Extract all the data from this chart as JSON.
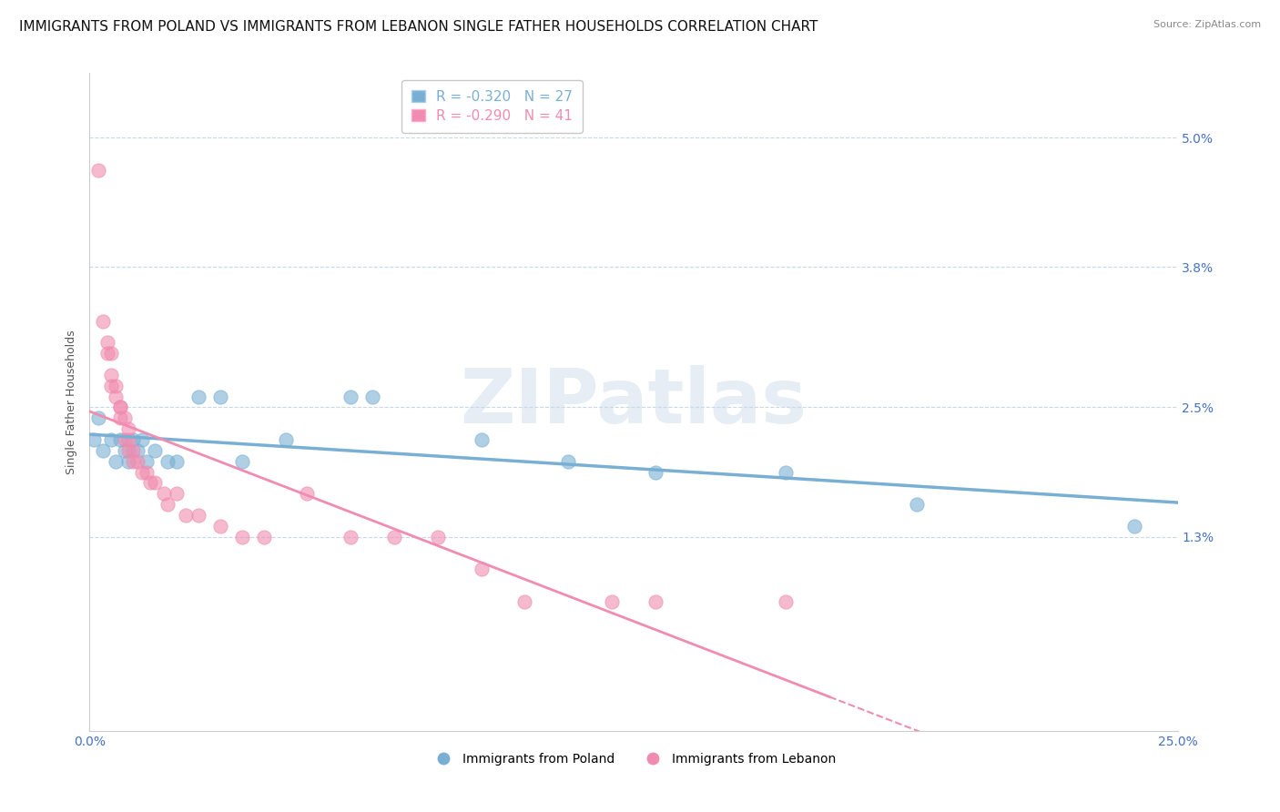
{
  "title": "IMMIGRANTS FROM POLAND VS IMMIGRANTS FROM LEBANON SINGLE FATHER HOUSEHOLDS CORRELATION CHART",
  "source": "Source: ZipAtlas.com",
  "ylabel": "Single Father Households",
  "x_min": 0.0,
  "x_max": 0.25,
  "y_min": -0.005,
  "y_max": 0.056,
  "y_ticks": [
    0.05,
    0.038,
    0.025,
    0.013
  ],
  "y_tick_labels": [
    "5.0%",
    "3.8%",
    "2.5%",
    "1.3%"
  ],
  "x_ticks": [
    0.0,
    0.25
  ],
  "x_tick_labels": [
    "0.0%",
    "25.0%"
  ],
  "legend_label1": "Immigrants from Poland",
  "legend_label2": "Immigrants from Lebanon",
  "color_poland": "#7aafd4",
  "color_lebanon": "#f08caf",
  "poland_R": -0.32,
  "poland_N": 27,
  "lebanon_R": -0.29,
  "lebanon_N": 41,
  "poland_points": [
    [
      0.001,
      0.022
    ],
    [
      0.002,
      0.024
    ],
    [
      0.003,
      0.021
    ],
    [
      0.005,
      0.022
    ],
    [
      0.006,
      0.02
    ],
    [
      0.007,
      0.022
    ],
    [
      0.008,
      0.021
    ],
    [
      0.009,
      0.02
    ],
    [
      0.01,
      0.022
    ],
    [
      0.011,
      0.021
    ],
    [
      0.012,
      0.022
    ],
    [
      0.013,
      0.02
    ],
    [
      0.015,
      0.021
    ],
    [
      0.018,
      0.02
    ],
    [
      0.02,
      0.02
    ],
    [
      0.025,
      0.026
    ],
    [
      0.03,
      0.026
    ],
    [
      0.035,
      0.02
    ],
    [
      0.045,
      0.022
    ],
    [
      0.06,
      0.026
    ],
    [
      0.065,
      0.026
    ],
    [
      0.09,
      0.022
    ],
    [
      0.11,
      0.02
    ],
    [
      0.13,
      0.019
    ],
    [
      0.16,
      0.019
    ],
    [
      0.19,
      0.016
    ],
    [
      0.24,
      0.014
    ]
  ],
  "lebanon_points": [
    [
      0.002,
      0.047
    ],
    [
      0.003,
      0.033
    ],
    [
      0.004,
      0.031
    ],
    [
      0.004,
      0.03
    ],
    [
      0.005,
      0.03
    ],
    [
      0.005,
      0.028
    ],
    [
      0.005,
      0.027
    ],
    [
      0.006,
      0.027
    ],
    [
      0.006,
      0.026
    ],
    [
      0.007,
      0.025
    ],
    [
      0.007,
      0.025
    ],
    [
      0.007,
      0.024
    ],
    [
      0.008,
      0.024
    ],
    [
      0.008,
      0.022
    ],
    [
      0.009,
      0.023
    ],
    [
      0.009,
      0.022
    ],
    [
      0.009,
      0.021
    ],
    [
      0.01,
      0.021
    ],
    [
      0.01,
      0.02
    ],
    [
      0.011,
      0.02
    ],
    [
      0.012,
      0.019
    ],
    [
      0.013,
      0.019
    ],
    [
      0.014,
      0.018
    ],
    [
      0.015,
      0.018
    ],
    [
      0.017,
      0.017
    ],
    [
      0.018,
      0.016
    ],
    [
      0.02,
      0.017
    ],
    [
      0.022,
      0.015
    ],
    [
      0.025,
      0.015
    ],
    [
      0.03,
      0.014
    ],
    [
      0.035,
      0.013
    ],
    [
      0.04,
      0.013
    ],
    [
      0.05,
      0.017
    ],
    [
      0.06,
      0.013
    ],
    [
      0.07,
      0.013
    ],
    [
      0.08,
      0.013
    ],
    [
      0.09,
      0.01
    ],
    [
      0.1,
      0.007
    ],
    [
      0.12,
      0.007
    ],
    [
      0.13,
      0.007
    ],
    [
      0.16,
      0.007
    ]
  ],
  "background_color": "#ffffff",
  "grid_color": "#c8d8e8",
  "watermark_text": "ZIPatlas",
  "title_fontsize": 11,
  "axis_label_fontsize": 9,
  "tick_label_color": "#4472c4",
  "tick_label_fontsize": 10
}
